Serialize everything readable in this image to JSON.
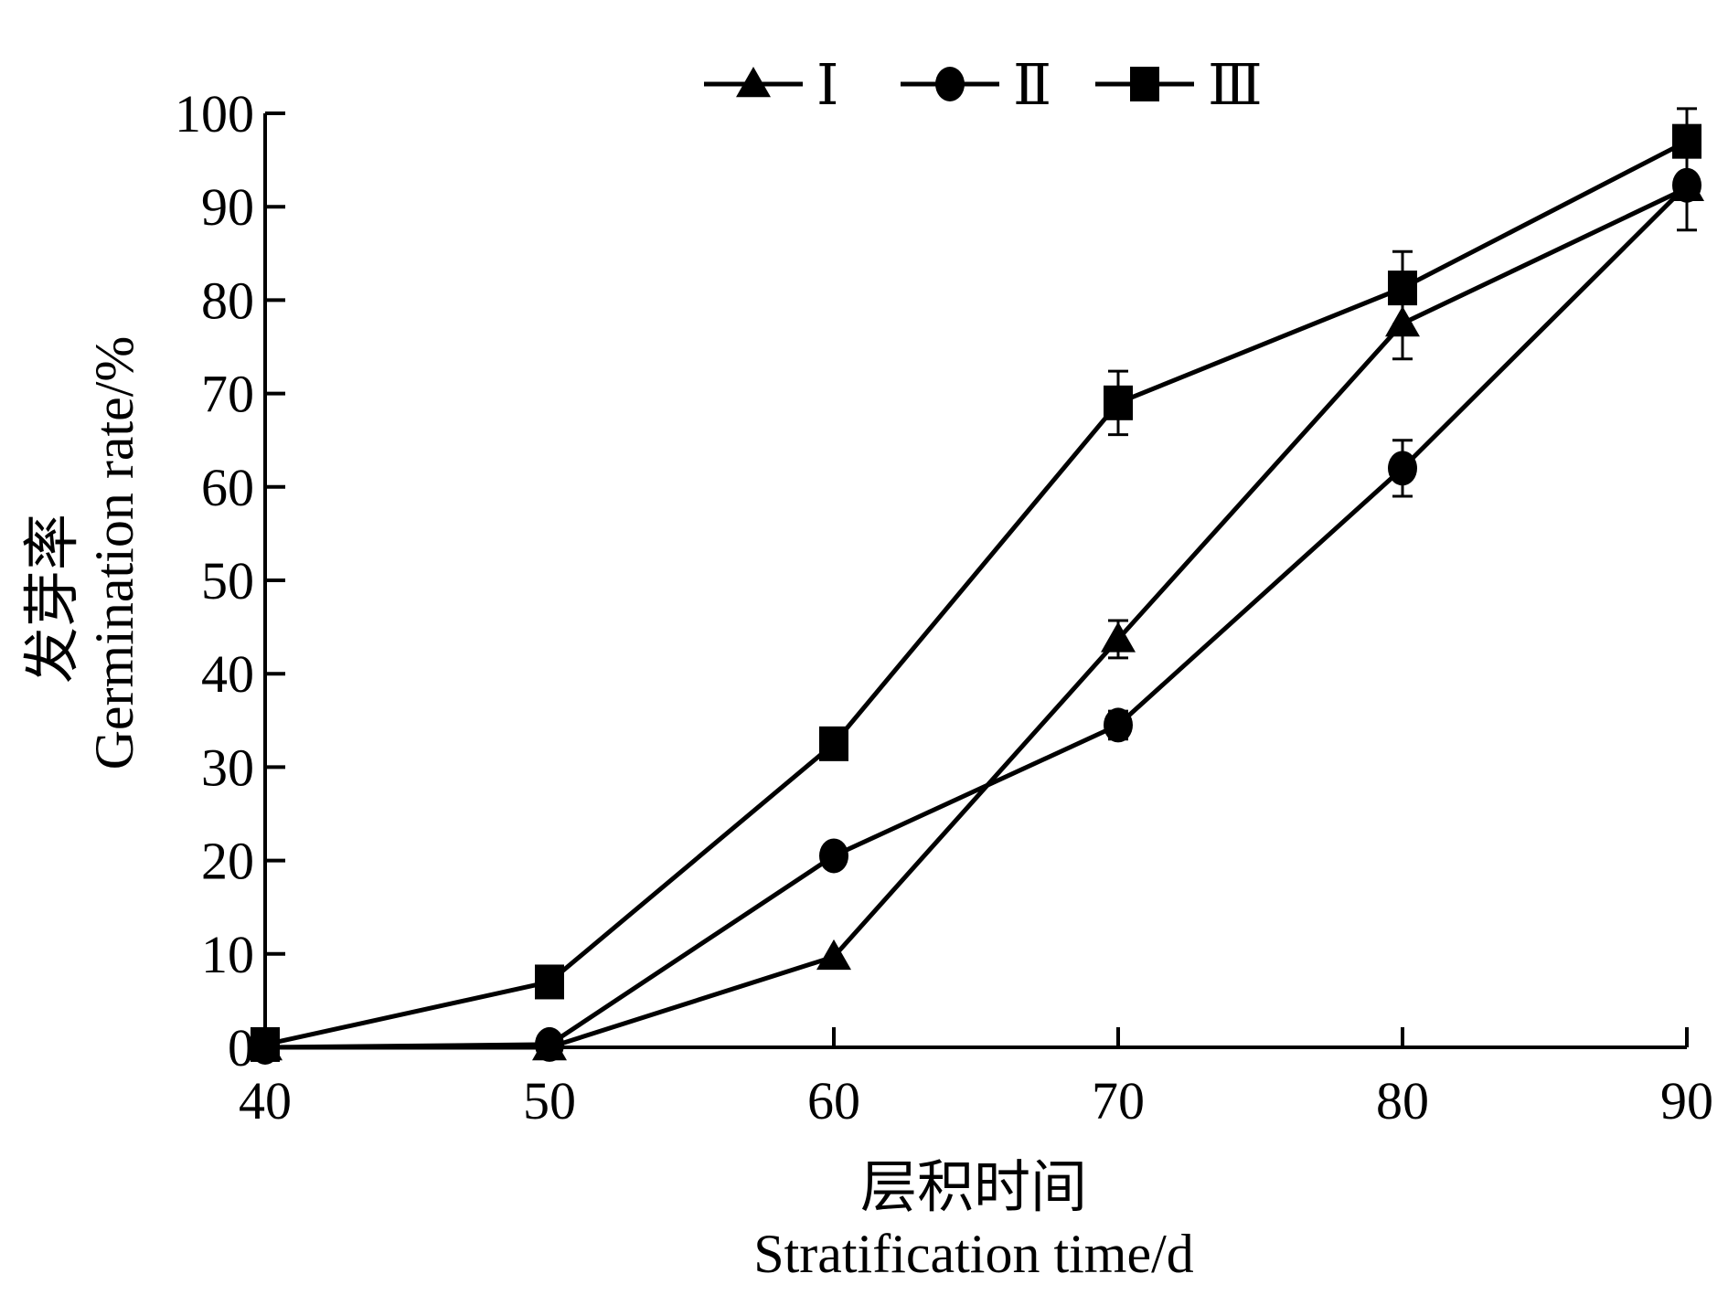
{
  "chart_data": {
    "type": "line",
    "title": "",
    "xlabel_cn": "层积时间",
    "xlabel": "Stratification time/d",
    "ylabel_cn": "发芽率",
    "ylabel": "Germination rate/%",
    "xlim": [
      40,
      90
    ],
    "ylim": [
      0,
      100
    ],
    "x_ticks": [
      "40",
      "50",
      "60",
      "70",
      "80",
      "90"
    ],
    "y_ticks": [
      "0",
      "10",
      "20",
      "30",
      "40",
      "50",
      "60",
      "70",
      "80",
      "90",
      "100"
    ],
    "grid": false,
    "legend_position": "top-center",
    "x": [
      40,
      50,
      60,
      70,
      80,
      90
    ],
    "series": [
      {
        "name": "Ⅰ",
        "marker": "triangle",
        "values": [
          0,
          0,
          9.7,
          43.7,
          77.5,
          92
        ],
        "errors": [
          0,
          0,
          0,
          2,
          3.8,
          4.5
        ]
      },
      {
        "name": "Ⅱ",
        "marker": "circle",
        "values": [
          0,
          0.3,
          20.5,
          34.5,
          62,
          92.3
        ],
        "errors": [
          0,
          0,
          0,
          1.5,
          3,
          0
        ]
      },
      {
        "name": "Ⅲ",
        "marker": "square",
        "values": [
          0.3,
          7,
          32.5,
          69,
          81.3,
          97
        ],
        "errors": [
          0,
          0,
          0,
          3.4,
          3.9,
          3.5
        ]
      }
    ]
  }
}
